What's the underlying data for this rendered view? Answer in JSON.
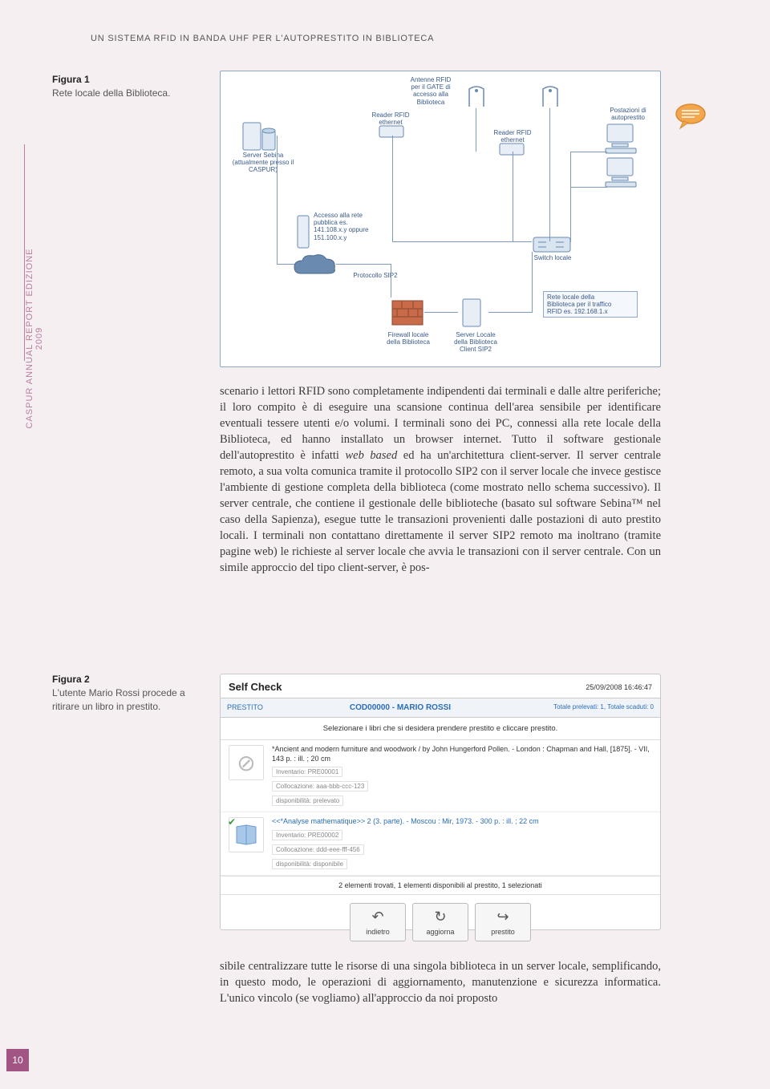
{
  "running_header": "UN SISTEMA RFID IN BANDA UHF PER L'AUTOPRESTITO IN BIBLIOTECA",
  "sidebar_text": "CASPUR ANNUAL REPORT EDIZIONE 2009",
  "page_number": "10",
  "figure1": {
    "title": "Figura 1",
    "desc": "Rete locale della Biblioteca."
  },
  "figure2": {
    "title": "Figura 2",
    "desc": "L'utente Mario Rossi procede a ritirare un libro in prestito."
  },
  "diagram": {
    "antenne_label": "Antenne RFID\nper il GATE di\naccesso alla\nBiblioteca",
    "server_sebina": "Server Sebina\n(attualmente presso il CASPUR)",
    "reader1": "Reader RFID\nethernet",
    "reader2": "Reader RFID\nethernet",
    "postazioni": "Postazioni di\nautoprestito",
    "accesso_rete": "Accesso alla rete\npubblica es.\n141.108.x.y oppure\n151.100.x.y",
    "protocollo": "Protocollo SIP2",
    "firewall": "Firewall locale\ndella Biblioteca",
    "server_locale": "Server Locale\ndella Biblioteca\nClient SIP2",
    "switch": "Switch locale",
    "rete_locale": "Rete locale della\nBiblioteca per il traffico\nRFID es. 192.168.1.x"
  },
  "body1": "scenario i lettori RFID sono completamente indipendenti dai terminali e dalle altre periferiche; il loro compito è di eseguire una scansione continua dell'area sensibile per identificare eventuali tessere utenti e/o volumi. I terminali sono dei PC, connessi alla rete locale della Biblioteca, ed hanno installato un browser internet. Tutto il software gestionale dell'autoprestito è infatti <em>web based</em> ed ha un'architettura client-server. Il server centrale remoto, a sua volta comunica tramite il protocollo SIP2 con il server locale che invece gestisce l'ambiente di gestione completa della biblioteca (come mostrato nello schema successivo). Il server centrale, che contiene il gestionale delle biblioteche (basato sul software Sebina™ nel caso della Sapienza), esegue tutte le transazioni provenienti dalle postazioni di auto prestito locali. I terminali non contattano direttamente il server SIP2 remoto ma inoltrano (tramite pagine web) le richieste al server locale che avvia le transazioni con il server centrale. Con un simile approccio del tipo client-server, è pos-",
  "body2": "sibile centralizzare tutte le risorse di una singola biblioteca in un server locale, semplificando, in questo modo, le operazioni di aggiornamento, manutenzione e sicurezza informatica. L'unico vincolo (se vogliamo) all'approccio da noi proposto",
  "selfcheck": {
    "title": "Self Check",
    "timestamp": "25/09/2008 16:46:47",
    "prestito_label": "PRESTITO",
    "user": "COD00000 - MARIO ROSSI",
    "totals": "Totale prelevati: 1, Totale scaduti: 0",
    "instruction": "Selezionare i libri che si desidera prendere prestito e cliccare prestito.",
    "items": [
      {
        "title": "*Ancient and modern furniture and woodwork / by John Hungerford Pollen. - London : Chapman and Hall, [1875]. - VII, 143 p. : ill. ; 20 cm",
        "inventario": "Inventario: PRE00001",
        "collocazione": "Collocazione: aaa-bbb-ccc-123",
        "disponibilita": "disponibilità: prelevato",
        "selected": false
      },
      {
        "title": "<<*Analyse mathematique>> 2 (3. parte). - Moscou : Mir, 1973. - 300 p. : ill. ; 22 cm",
        "inventario": "Inventario: PRE00002",
        "collocazione": "Collocazione: ddd-eee-fff-456",
        "disponibilita": "disponibilità: disponibile",
        "selected": true
      }
    ],
    "summary": "2 elementi trovati, 1 elementi disponibili al prestito, 1 selezionati",
    "buttons": {
      "back": "indietro",
      "refresh": "aggiorna",
      "loan": "prestito"
    }
  }
}
